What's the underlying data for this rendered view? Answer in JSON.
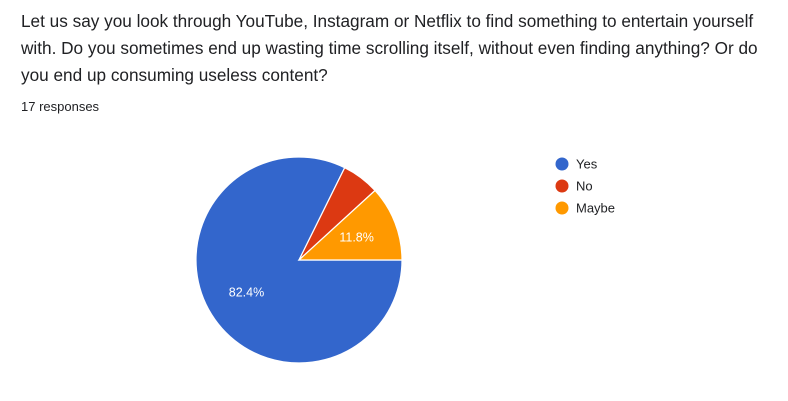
{
  "question": {
    "title": "Let us say you look through YouTube, Instagram or Netflix to find something to entertain yourself with. Do you sometimes end up wasting time scrolling itself, without even finding anything? Or do you end up consuming useless content?",
    "responses": "17 responses"
  },
  "chart_data": {
    "type": "pie",
    "title": "",
    "categories": [
      "Yes",
      "No",
      "Maybe"
    ],
    "values": [
      82.4,
      5.9,
      11.8
    ],
    "slice_labels": [
      "82.4%",
      "",
      "11.8%"
    ],
    "colors": [
      "#3366cc",
      "#dc3912",
      "#ff9900"
    ],
    "legend_position": "right"
  }
}
